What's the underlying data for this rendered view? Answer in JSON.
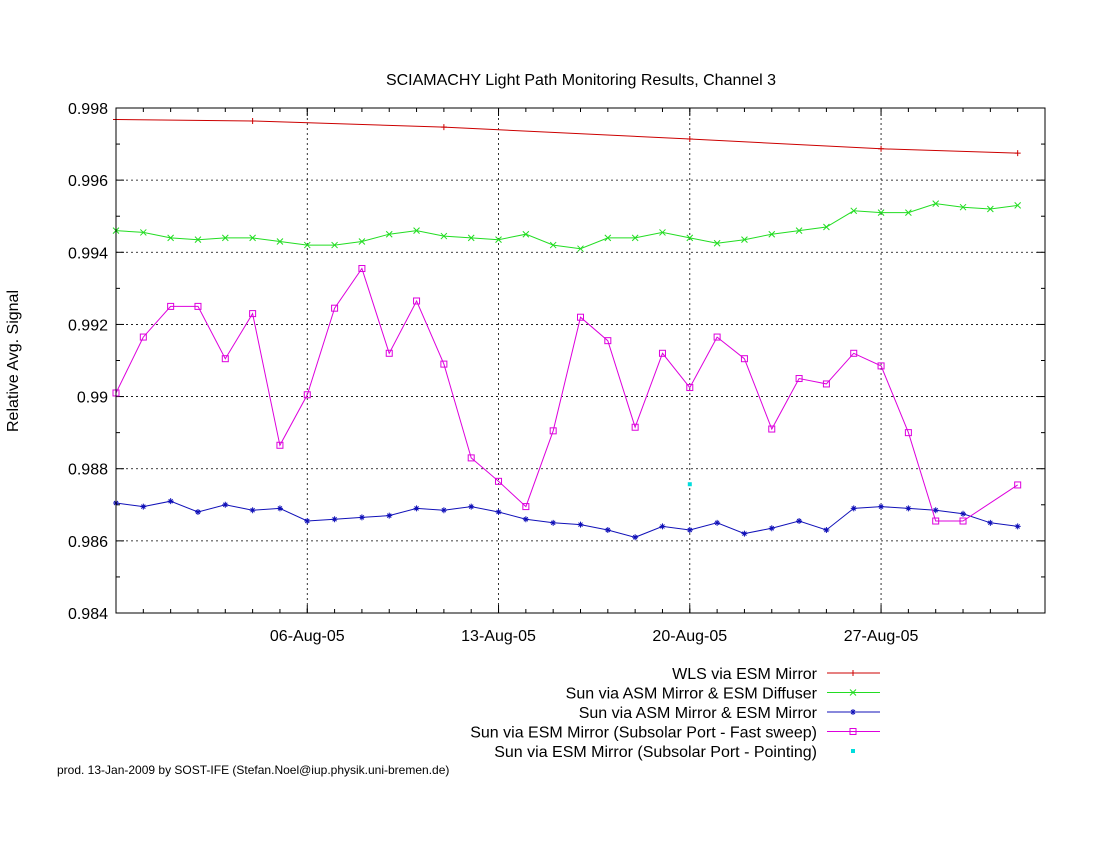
{
  "colors": {
    "wls": "#cc0000",
    "asm_diffuser": "#22dd22",
    "asm_mirror": "#1010b8",
    "fast_sweep": "#dd00dd",
    "pointing": "#00dddd"
  },
  "footer": "prod. 13-Jan-2009 by SOST-IFE (Stefan.Noel@iup.physik.uni-bremen.de)",
  "chart_data": {
    "type": "line",
    "title": "SCIAMACHY Light Path Monitoring Results, Channel 3",
    "xlabel": "",
    "ylabel": "Relative Avg. Signal",
    "x_range": [
      "30-Jul-05",
      "02-Sep-05"
    ],
    "xticks": [
      {
        "date": "06-Aug-05",
        "label": "06-Aug-05"
      },
      {
        "date": "13-Aug-05",
        "label": "13-Aug-05"
      },
      {
        "date": "20-Aug-05",
        "label": "20-Aug-05"
      },
      {
        "date": "27-Aug-05",
        "label": "27-Aug-05"
      }
    ],
    "ylim": [
      0.984,
      0.998
    ],
    "yticks": [
      "0.998",
      "0.996",
      "0.994",
      "0.992",
      "0.99",
      "0.988",
      "0.986",
      "0.984"
    ],
    "grid": true,
    "legend_position": "below",
    "series": [
      {
        "name": "WLS via ESM Mirror",
        "marker": "plus",
        "points": [
          [
            "2005-07-30",
            0.99768
          ],
          [
            "2005-08-04",
            0.99764
          ],
          [
            "2005-08-11",
            0.99747
          ],
          [
            "2005-08-20",
            0.99714
          ],
          [
            "2005-08-27",
            0.99687
          ],
          [
            "2005-09-01",
            0.99675
          ]
        ]
      },
      {
        "name": "Sun via ASM Mirror & ESM Diffuser",
        "marker": "x",
        "points": [
          [
            "2005-07-30",
            0.9946
          ],
          [
            "2005-07-31",
            0.99455
          ],
          [
            "2005-08-01",
            0.9944
          ],
          [
            "2005-08-02",
            0.99435
          ],
          [
            "2005-08-03",
            0.9944
          ],
          [
            "2005-08-04",
            0.9944
          ],
          [
            "2005-08-05",
            0.9943
          ],
          [
            "2005-08-06",
            0.9942
          ],
          [
            "2005-08-07",
            0.9942
          ],
          [
            "2005-08-08",
            0.9943
          ],
          [
            "2005-08-09",
            0.9945
          ],
          [
            "2005-08-10",
            0.9946
          ],
          [
            "2005-08-11",
            0.99445
          ],
          [
            "2005-08-12",
            0.9944
          ],
          [
            "2005-08-13",
            0.99435
          ],
          [
            "2005-08-14",
            0.9945
          ],
          [
            "2005-08-15",
            0.9942
          ],
          [
            "2005-08-16",
            0.9941
          ],
          [
            "2005-08-17",
            0.9944
          ],
          [
            "2005-08-18",
            0.9944
          ],
          [
            "2005-08-19",
            0.99455
          ],
          [
            "2005-08-20",
            0.9944
          ],
          [
            "2005-08-21",
            0.99425
          ],
          [
            "2005-08-22",
            0.99435
          ],
          [
            "2005-08-23",
            0.9945
          ],
          [
            "2005-08-24",
            0.9946
          ],
          [
            "2005-08-25",
            0.9947
          ],
          [
            "2005-08-26",
            0.99515
          ],
          [
            "2005-08-27",
            0.9951
          ],
          [
            "2005-08-28",
            0.9951
          ],
          [
            "2005-08-29",
            0.99535
          ],
          [
            "2005-08-30",
            0.99525
          ],
          [
            "2005-08-31",
            0.9952
          ],
          [
            "2005-09-01",
            0.9953
          ]
        ]
      },
      {
        "name": "Sun via ASM Mirror & ESM Mirror",
        "marker": "star",
        "points": [
          [
            "2005-07-30",
            0.98705
          ],
          [
            "2005-07-31",
            0.98695
          ],
          [
            "2005-08-01",
            0.9871
          ],
          [
            "2005-08-02",
            0.9868
          ],
          [
            "2005-08-03",
            0.987
          ],
          [
            "2005-08-04",
            0.98685
          ],
          [
            "2005-08-05",
            0.9869
          ],
          [
            "2005-08-06",
            0.98655
          ],
          [
            "2005-08-07",
            0.9866
          ],
          [
            "2005-08-08",
            0.98665
          ],
          [
            "2005-08-09",
            0.9867
          ],
          [
            "2005-08-10",
            0.9869
          ],
          [
            "2005-08-11",
            0.98685
          ],
          [
            "2005-08-12",
            0.98695
          ],
          [
            "2005-08-13",
            0.9868
          ],
          [
            "2005-08-14",
            0.9866
          ],
          [
            "2005-08-15",
            0.9865
          ],
          [
            "2005-08-16",
            0.98645
          ],
          [
            "2005-08-17",
            0.9863
          ],
          [
            "2005-08-18",
            0.9861
          ],
          [
            "2005-08-19",
            0.9864
          ],
          [
            "2005-08-20",
            0.9863
          ],
          [
            "2005-08-21",
            0.9865
          ],
          [
            "2005-08-22",
            0.9862
          ],
          [
            "2005-08-23",
            0.98635
          ],
          [
            "2005-08-24",
            0.98655
          ],
          [
            "2005-08-25",
            0.9863
          ],
          [
            "2005-08-26",
            0.9869
          ],
          [
            "2005-08-27",
            0.98695
          ],
          [
            "2005-08-28",
            0.9869
          ],
          [
            "2005-08-29",
            0.98685
          ],
          [
            "2005-08-30",
            0.98675
          ],
          [
            "2005-08-31",
            0.9865
          ],
          [
            "2005-09-01",
            0.9864
          ]
        ]
      },
      {
        "name": "Sun via ESM Mirror (Subsolar Port - Fast sweep)",
        "marker": "square",
        "points": [
          [
            "2005-07-30",
            0.9901
          ],
          [
            "2005-07-31",
            0.99165
          ],
          [
            "2005-08-01",
            0.9925
          ],
          [
            "2005-08-02",
            0.9925
          ],
          [
            "2005-08-03",
            0.99105
          ],
          [
            "2005-08-04",
            0.9923
          ],
          [
            "2005-08-05",
            0.98865
          ],
          [
            "2005-08-06",
            0.99005
          ],
          [
            "2005-08-07",
            0.99245
          ],
          [
            "2005-08-08",
            0.99355
          ],
          [
            "2005-08-09",
            0.9912
          ],
          [
            "2005-08-10",
            0.99265
          ],
          [
            "2005-08-11",
            0.9909
          ],
          [
            "2005-08-12",
            0.9883
          ],
          [
            "2005-08-13",
            0.98765
          ],
          [
            "2005-08-14",
            0.98695
          ],
          [
            "2005-08-15",
            0.98905
          ],
          [
            "2005-08-16",
            0.9922
          ],
          [
            "2005-08-17",
            0.99155
          ],
          [
            "2005-08-18",
            0.98915
          ],
          [
            "2005-08-19",
            0.9912
          ],
          [
            "2005-08-20",
            0.99025
          ],
          [
            "2005-08-21",
            0.99165
          ],
          [
            "2005-08-22",
            0.99105
          ],
          [
            "2005-08-23",
            0.9891
          ],
          [
            "2005-08-24",
            0.9905
          ],
          [
            "2005-08-25",
            0.99035
          ],
          [
            "2005-08-26",
            0.9912
          ],
          [
            "2005-08-27",
            0.99085
          ],
          [
            "2005-08-28",
            0.989
          ],
          [
            "2005-08-29",
            0.98655
          ],
          [
            "2005-08-30",
            0.98655
          ],
          [
            "2005-09-01",
            0.98755
          ]
        ]
      },
      {
        "name": "Sun via ESM Mirror (Subsolar Port - Pointing)",
        "marker": "dot",
        "points": [
          [
            "2005-08-20",
            0.98757
          ]
        ]
      }
    ]
  }
}
